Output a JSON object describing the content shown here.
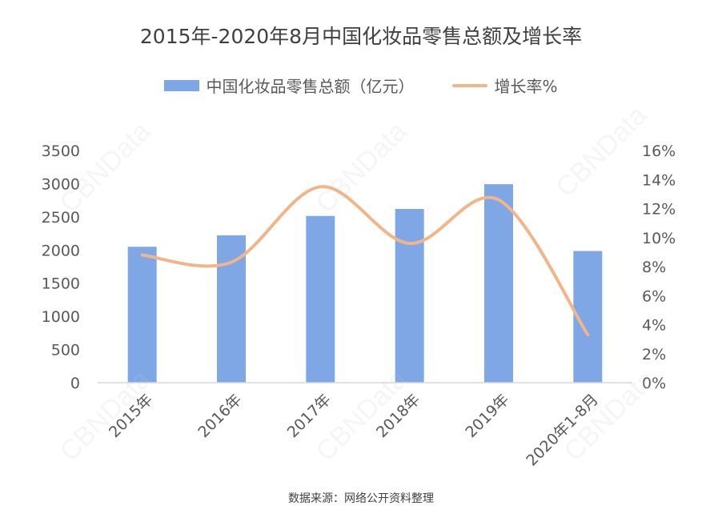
{
  "watermark_text": "CBNData",
  "source": "数据来源：网络公开资料整理",
  "colors": {
    "bar": "#7FA7E6",
    "line": "#F0B589",
    "axis": "#D9D9D9",
    "text": "#595959"
  },
  "chart_data": {
    "type": "bar",
    "title": "2015年-2020年8月中国化妆品零售总额及增长率",
    "categories": [
      "2015年",
      "2016年",
      "2017年",
      "2018年",
      "2019年",
      "2020年1-8月"
    ],
    "series": [
      {
        "name": "中国化妆品零售总额（亿元）",
        "type": "bar",
        "axis": "left",
        "values": [
          2049,
          2222,
          2514,
          2619,
          2992,
          1985
        ]
      },
      {
        "name": "增长率%",
        "type": "line",
        "axis": "right",
        "values": [
          8.8,
          8.3,
          13.5,
          9.6,
          12.6,
          3.3
        ]
      }
    ],
    "y_left": {
      "min": 0,
      "max": 3500,
      "ticks": [
        "0",
        "500",
        "1000",
        "1500",
        "2000",
        "2500",
        "3000",
        "3500"
      ]
    },
    "y_right": {
      "min": 0,
      "max": 16,
      "ticks": [
        "0%",
        "2%",
        "4%",
        "6%",
        "8%",
        "10%",
        "12%",
        "14%",
        "16%"
      ]
    },
    "legend_position": "top",
    "grid": false
  }
}
